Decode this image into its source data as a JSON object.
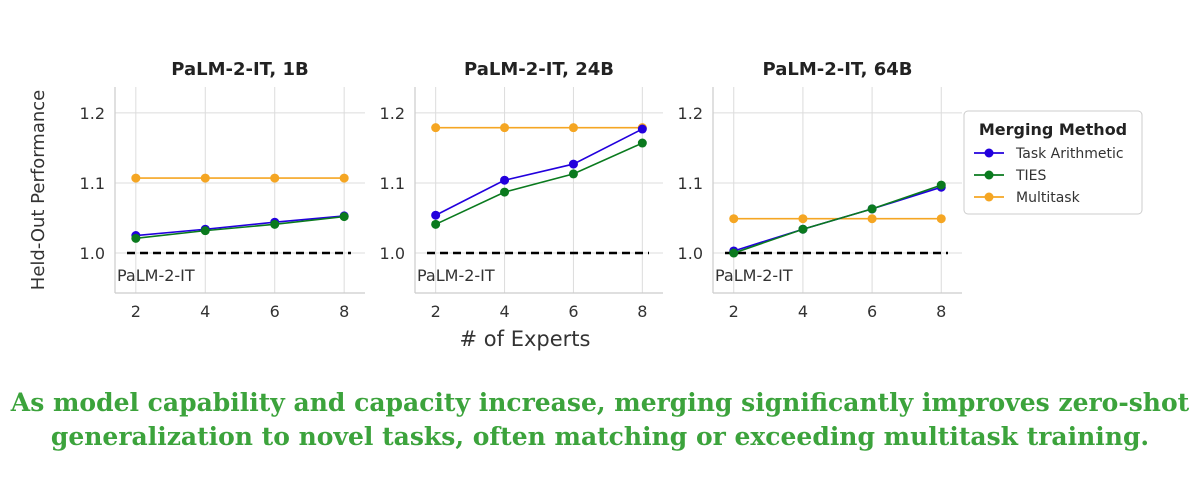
{
  "chart_data": [
    {
      "type": "line",
      "title": "PaLM-2-IT, 1B",
      "x": [
        2,
        4,
        6,
        8
      ],
      "xlim": [
        1.4,
        8.6
      ],
      "ylim": [
        0.943,
        1.237
      ],
      "yticks": [
        1.0,
        1.1,
        1.2
      ],
      "xticks": [
        2,
        4,
        6,
        8
      ],
      "baseline": {
        "value": 1.0,
        "label": "PaLM-2-IT"
      },
      "series": [
        {
          "name": "Task Arithmetic",
          "color": "#2200dd",
          "values": [
            1.025,
            1.034,
            1.044,
            1.053
          ]
        },
        {
          "name": "TIES",
          "color": "#0a7a1e",
          "values": [
            1.021,
            1.032,
            1.041,
            1.052
          ]
        },
        {
          "name": "Multitask",
          "color": "#f5a623",
          "values": [
            1.107,
            1.107,
            1.107,
            1.107
          ]
        }
      ],
      "grid": true
    },
    {
      "type": "line",
      "title": "PaLM-2-IT, 24B",
      "x": [
        2,
        4,
        6,
        8
      ],
      "xlim": [
        1.4,
        8.6
      ],
      "ylim": [
        0.943,
        1.237
      ],
      "yticks": [
        1.0,
        1.1,
        1.2
      ],
      "xticks": [
        2,
        4,
        6,
        8
      ],
      "baseline": {
        "value": 1.0,
        "label": "PaLM-2-IT"
      },
      "series": [
        {
          "name": "Task Arithmetic",
          "color": "#2200dd",
          "values": [
            1.054,
            1.104,
            1.127,
            1.177
          ]
        },
        {
          "name": "TIES",
          "color": "#0a7a1e",
          "values": [
            1.041,
            1.087,
            1.113,
            1.157
          ]
        },
        {
          "name": "Multitask",
          "color": "#f5a623",
          "values": [
            1.179,
            1.179,
            1.179,
            1.179
          ]
        }
      ],
      "grid": true
    },
    {
      "type": "line",
      "title": "PaLM-2-IT, 64B",
      "x": [
        2,
        4,
        6,
        8
      ],
      "xlim": [
        1.4,
        8.6
      ],
      "ylim": [
        0.943,
        1.237
      ],
      "yticks": [
        1.0,
        1.1,
        1.2
      ],
      "xticks": [
        2,
        4,
        6,
        8
      ],
      "baseline": {
        "value": 1.0,
        "label": "PaLM-2-IT"
      },
      "series": [
        {
          "name": "Task Arithmetic",
          "color": "#2200dd",
          "values": [
            1.003,
            1.034,
            1.063,
            1.094
          ]
        },
        {
          "name": "TIES",
          "color": "#0a7a1e",
          "values": [
            1.0,
            1.034,
            1.063,
            1.097
          ]
        },
        {
          "name": "Multitask",
          "color": "#f5a623",
          "values": [
            1.049,
            1.049,
            1.049,
            1.049
          ]
        }
      ],
      "grid": true
    }
  ],
  "axes": {
    "xlabel": "# of Experts",
    "ylabel": "Held-Out Performance"
  },
  "legend": {
    "title": "Merging Method",
    "placement": "right",
    "entries": [
      "Task Arithmetic",
      "TIES",
      "Multitask"
    ]
  },
  "caption": {
    "line1": "As model capability and capacity increase, merging significantly improves zero-shot",
    "line2": "generalization to novel tasks, often matching or exceeding multitask training."
  }
}
